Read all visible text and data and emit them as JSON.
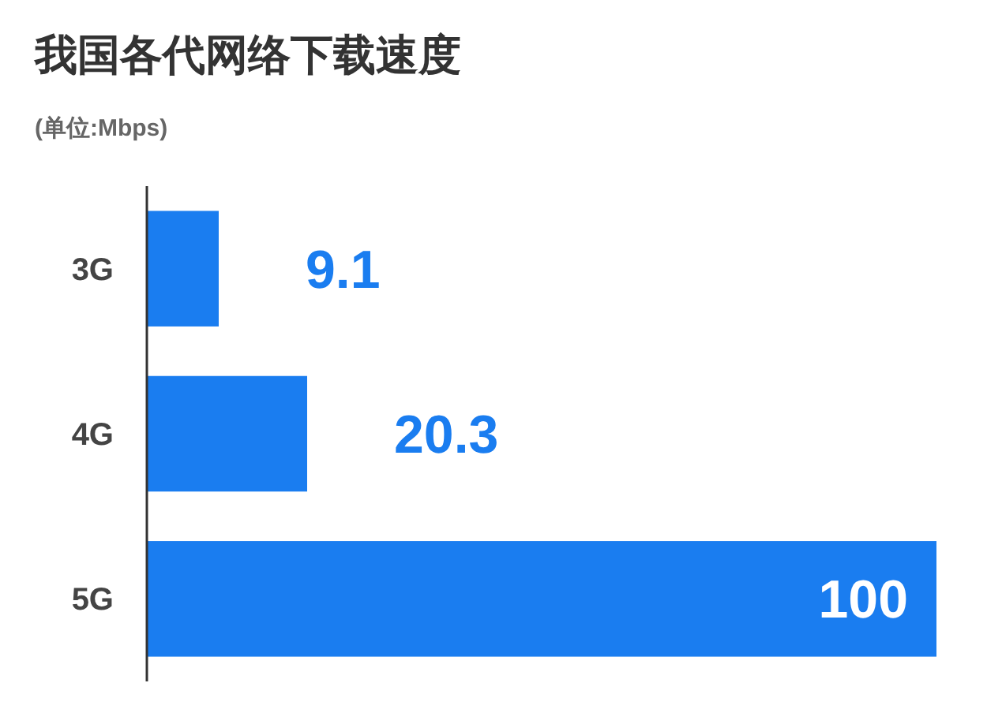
{
  "chart_data": {
    "type": "bar",
    "orientation": "horizontal",
    "title": "我国各代网络下载速度",
    "subtitle": "(单位:Mbps)",
    "categories": [
      "3G",
      "4G",
      "5G"
    ],
    "values": [
      9.1,
      20.3,
      100
    ],
    "color": "#1a7df0",
    "data_labels": true
  }
}
